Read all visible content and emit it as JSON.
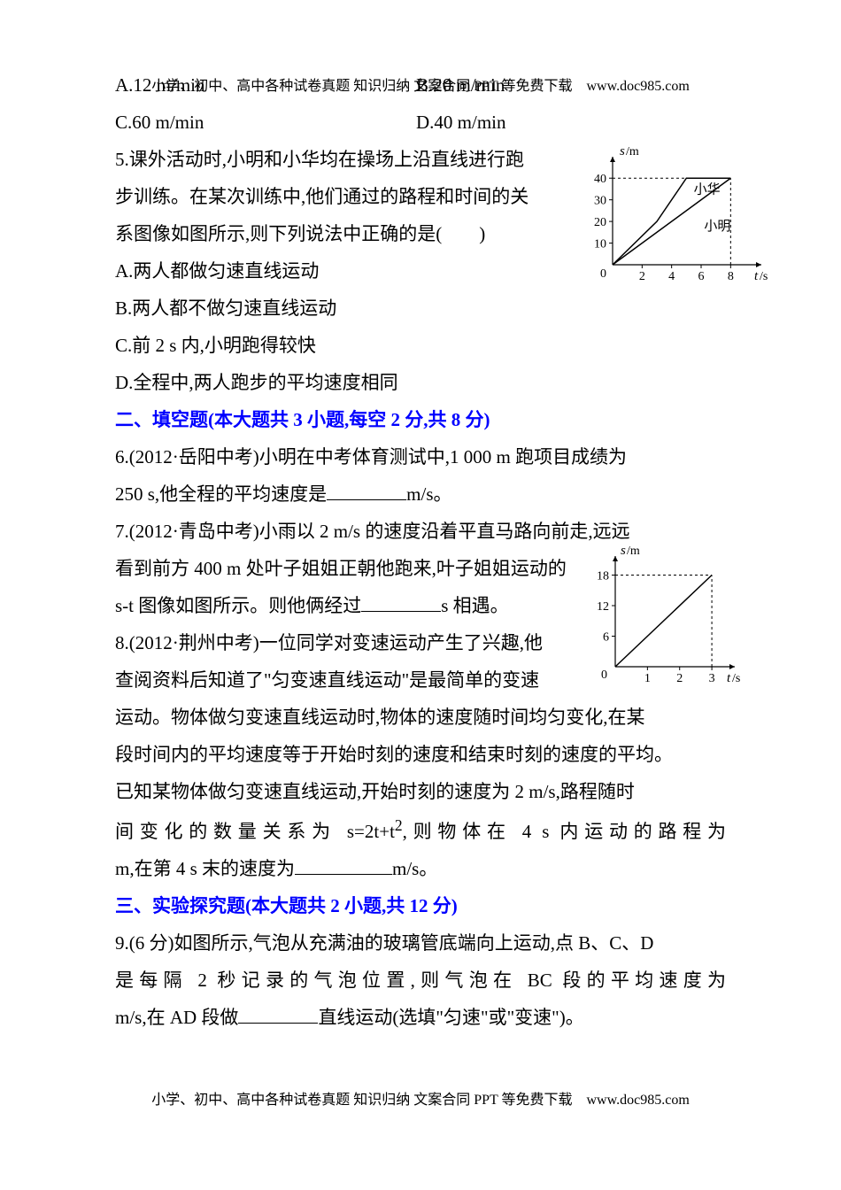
{
  "header": "小学、初中、高中各种试卷真题 知识归纳 文案合同 PPT 等免费下载　www.doc985.com",
  "footer": "小学、初中、高中各种试卷真题 知识归纳 文案合同 PPT 等免费下载　www.doc985.com",
  "q4": {
    "optA": "A.12 m/min",
    "optB": "B.20 m/min",
    "optC": "C.60 m/min",
    "optD": "D.40 m/min"
  },
  "q5": {
    "stem1": "5.课外活动时,小明和小华均在操场上沿直线进行跑",
    "stem2": "步训练。在某次训练中,他们通过的路程和时间的关",
    "stem3": "系图像如图所示,则下列说法中正确的是(　　)",
    "optA": "A.两人都做匀速直线运动",
    "optB": "B.两人都不做匀速直线运动",
    "optC": "C.前 2 s 内,小明跑得较快",
    "optD": "D.全程中,两人跑步的平均速度相同"
  },
  "section2": "二、填空题(本大题共 3 小题,每空 2 分,共 8 分)",
  "q6a": "6.(2012·岳阳中考)小明在中考体育测试中,1 000 m 跑项目成绩为",
  "q6b_pre": "250 s,他全程的平均速度是",
  "q6b_post": "m/s。",
  "q7": {
    "l1": "7.(2012·青岛中考)小雨以 2 m/s 的速度沿着平直马路向前走,远远",
    "l2": "看到前方 400 m 处叶子姐姐正朝他跑来,叶子姐姐运动的",
    "l3a": "s-t 图像如图所示。则他俩经过",
    "l3b": "s 相遇。"
  },
  "q8": {
    "l1": "8.(2012·荆州中考)一位同学对变速运动产生了兴趣,他",
    "l2": "查阅资料后知道了\"匀变速直线运动\"是最简单的变速",
    "l3": "运动。物体做匀变速直线运动时,物体的速度随时间均匀变化,在某",
    "l4": "段时间内的平均速度等于开始时刻的速度和结束时刻的速度的平均。",
    "l5": "已知某物体做匀变速直线运动,开始时刻的速度为 2 m/s,路程随时",
    "l6a": "间变化的数量关系为 s=2t+t",
    "l6b": ",则物体在 4 s 内运动的路程为",
    "l7a": "m,在第 4 s 末的速度为",
    "l7b": "m/s。"
  },
  "section3": "三、实验探究题(本大题共 2 小题,共 12 分)",
  "q9": {
    "l1": "9.(6 分)如图所示,气泡从充满油的玻璃管底端向上运动,点 B、C、D",
    "l2": "是每隔 2 秒记录的气泡位置,则气泡在 BC 段的平均速度为",
    "l3a": "m/s,在 AD 段做",
    "l3b": "直线运动(选填\"匀速\"或\"变速\")。"
  },
  "chart1": {
    "type": "line",
    "y_label": "s/m",
    "x_label": "t/s",
    "x_range": [
      0,
      9
    ],
    "y_range": [
      0,
      45
    ],
    "x_ticks": [
      2,
      4,
      6,
      8
    ],
    "y_ticks": [
      10,
      20,
      30,
      40
    ],
    "axis_color": "#000000",
    "dash_color": "#000000",
    "series": [
      {
        "name": "小华",
        "points": [
          [
            0,
            0
          ],
          [
            3,
            20
          ],
          [
            5,
            40
          ],
          [
            8,
            40
          ]
        ],
        "label_pos": [
          5.5,
          33
        ]
      },
      {
        "name": "小明",
        "points": [
          [
            0,
            0
          ],
          [
            8,
            40
          ]
        ],
        "label_pos": [
          6.2,
          16
        ]
      }
    ],
    "dashed": [
      {
        "from": [
          0,
          40
        ],
        "to": [
          8,
          40
        ]
      },
      {
        "from": [
          8,
          0
        ],
        "to": [
          8,
          40
        ]
      }
    ]
  },
  "chart2": {
    "type": "line",
    "y_label": "s/m",
    "x_label": "t/s",
    "x_range": [
      0,
      3.3
    ],
    "y_range": [
      0,
      20
    ],
    "x_ticks": [
      1,
      2,
      3
    ],
    "y_ticks": [
      6,
      12,
      18
    ],
    "axis_color": "#000000",
    "series": [
      {
        "points": [
          [
            0,
            0
          ],
          [
            3,
            18
          ]
        ]
      }
    ],
    "dashed": [
      {
        "from": [
          0,
          18
        ],
        "to": [
          3,
          18
        ]
      },
      {
        "from": [
          3,
          0
        ],
        "to": [
          3,
          18
        ]
      }
    ]
  }
}
